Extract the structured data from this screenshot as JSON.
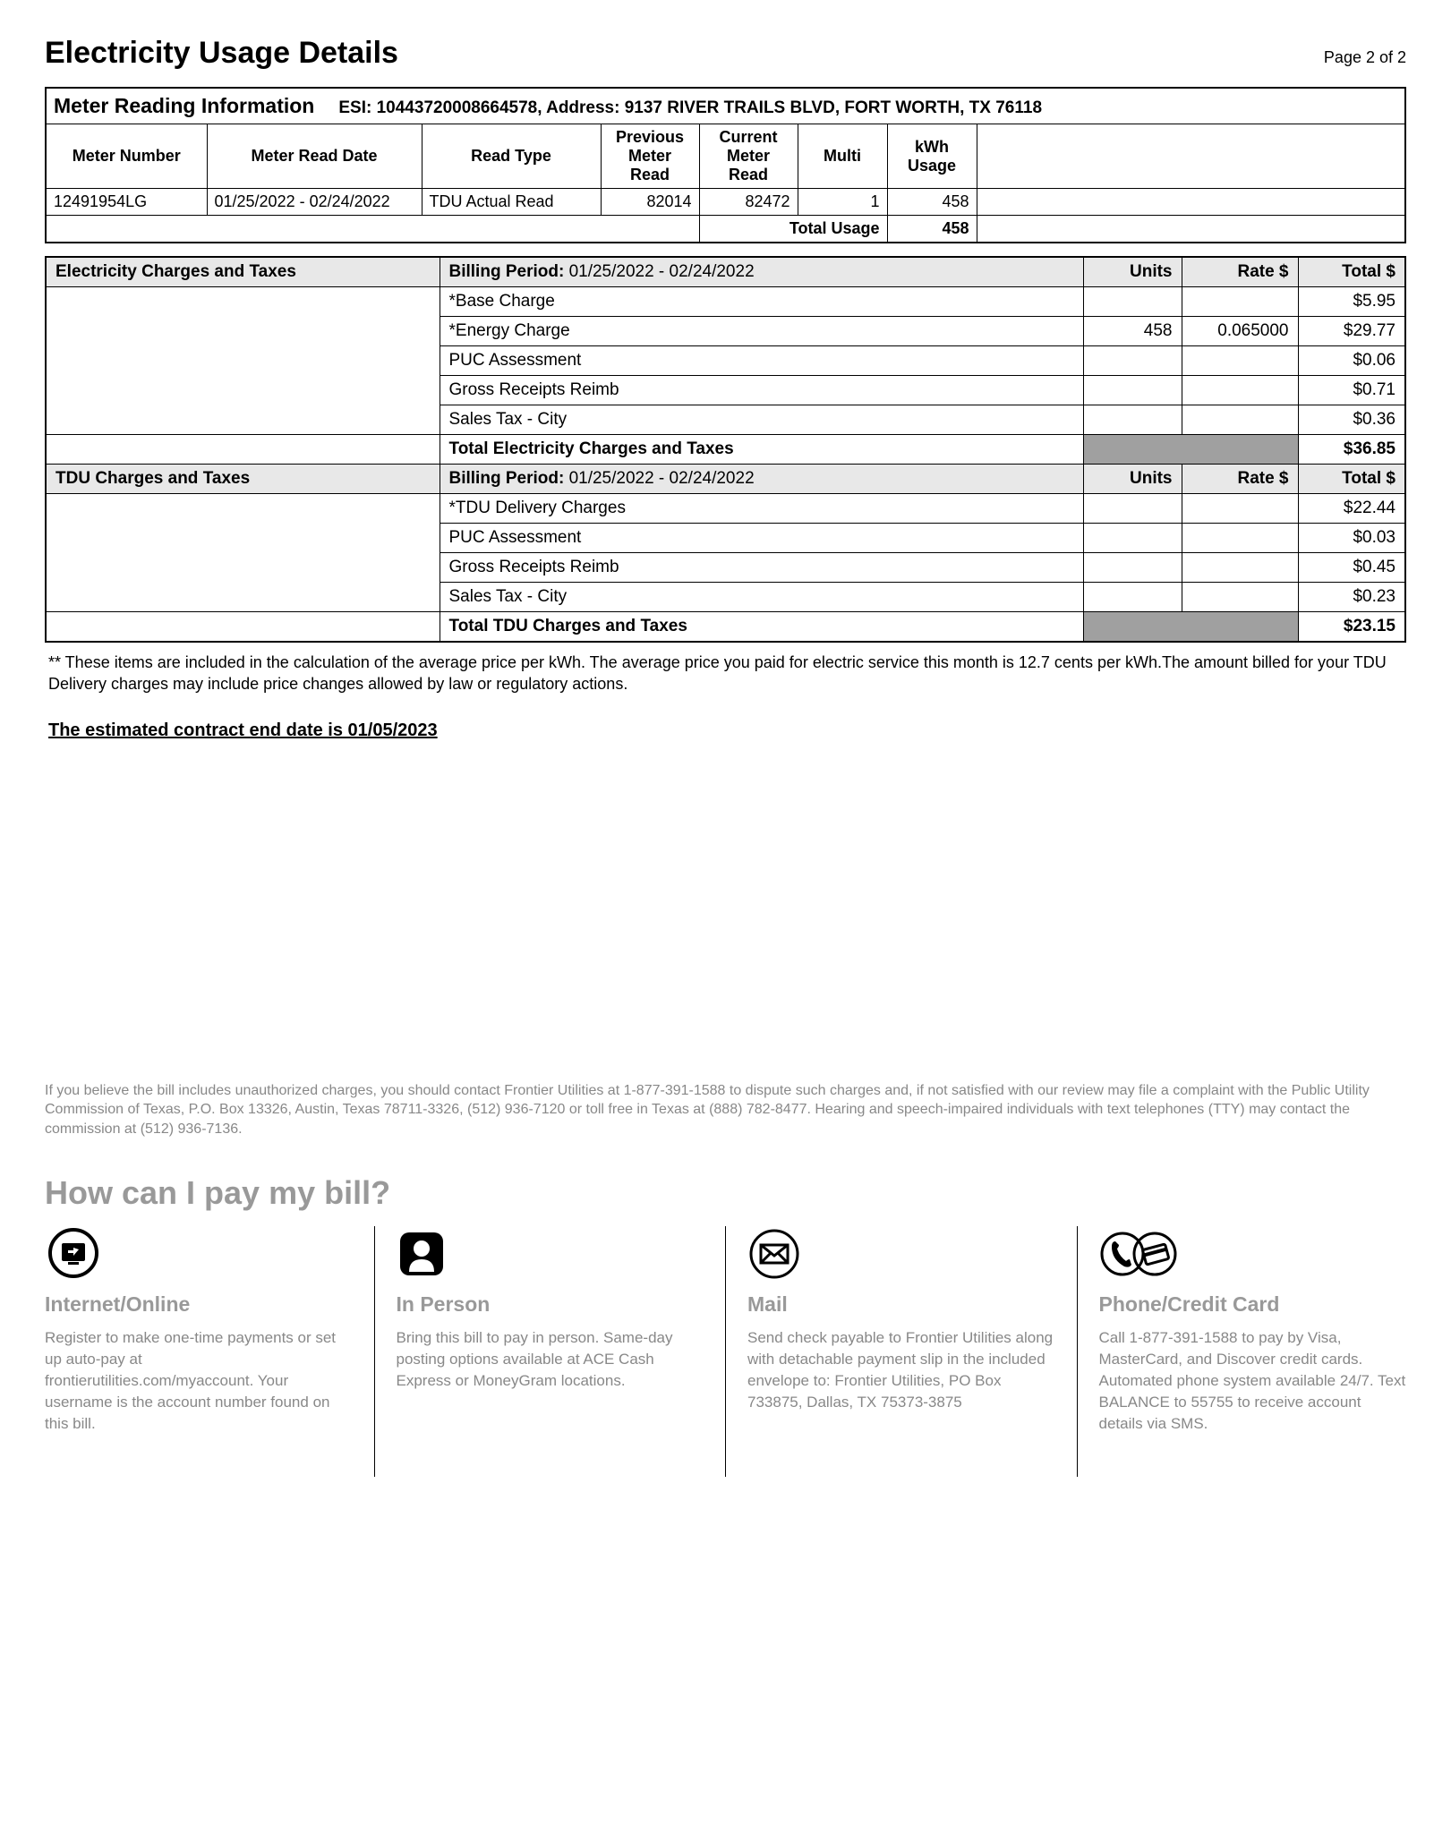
{
  "header": {
    "title": "Electricity Usage Details",
    "page": "Page 2 of 2"
  },
  "meter": {
    "section_title": "Meter Reading Information",
    "esi_label": "ESI: 10443720008664578, Address: 9137 RIVER TRAILS BLVD, FORT WORTH, TX 76118",
    "columns": {
      "meter_number": "Meter Number",
      "meter_read_date": "Meter Read Date",
      "read_type": "Read Type",
      "prev_line1": "Previous",
      "prev_line2": "Meter Read",
      "curr_line1": "Current",
      "curr_line2": "Meter Read",
      "multi": "Multi",
      "kwh_line1": "kWh",
      "kwh_line2": "Usage"
    },
    "row": {
      "meter_number": "12491954LG",
      "meter_read_date": "01/25/2022 - 02/24/2022",
      "read_type": "TDU Actual Read",
      "previous": "82014",
      "current": "82472",
      "multi": "1",
      "kwh": "458"
    },
    "total_label": "Total Usage",
    "total_value": "458"
  },
  "elec_charges": {
    "section_title": "Electricity Charges and Taxes",
    "billing_label": "Billing Period:",
    "billing_value": "01/25/2022 - 02/24/2022",
    "col_units": "Units",
    "col_rate": "Rate $",
    "col_total": "Total $",
    "rows": [
      {
        "label": "*Base Charge",
        "units": "",
        "rate": "",
        "total": "$5.95"
      },
      {
        "label": "*Energy Charge",
        "units": "458",
        "rate": "0.065000",
        "total": "$29.77"
      },
      {
        "label": "PUC Assessment",
        "units": "",
        "rate": "",
        "total": "$0.06"
      },
      {
        "label": "Gross Receipts Reimb",
        "units": "",
        "rate": "",
        "total": "$0.71"
      },
      {
        "label": "Sales Tax - City",
        "units": "",
        "rate": "",
        "total": "$0.36"
      }
    ],
    "total_label": "Total Electricity Charges and Taxes",
    "total_value": "$36.85"
  },
  "tdu_charges": {
    "section_title": "TDU Charges and Taxes",
    "billing_label": "Billing Period:",
    "billing_value": "01/25/2022 - 02/24/2022",
    "col_units": "Units",
    "col_rate": "Rate $",
    "col_total": "Total $",
    "rows": [
      {
        "label": "*TDU Delivery Charges",
        "units": "",
        "rate": "",
        "total": "$22.44"
      },
      {
        "label": "PUC Assessment",
        "units": "",
        "rate": "",
        "total": "$0.03"
      },
      {
        "label": "Gross Receipts Reimb",
        "units": "",
        "rate": "",
        "total": "$0.45"
      },
      {
        "label": "Sales Tax - City",
        "units": "",
        "rate": "",
        "total": "$0.23"
      }
    ],
    "total_label": "Total TDU Charges and Taxes",
    "total_value": "$23.15"
  },
  "footnote": "** These items are included in the calculation of the average price per kWh. The average price you paid for electric service this month is 12.7 cents per kWh.The amount billed for your TDU Delivery charges may include price changes allowed by law or regulatory actions.",
  "contract_end": "The estimated contract end date is 01/05/2023",
  "dispute": "If you believe the bill includes unauthorized charges, you should contact Frontier Utilities at 1-877-391-1588 to dispute such charges and, if not satisfied with our review may file a complaint with the Public Utility Commission of Texas, P.O. Box 13326, Austin, Texas 78711-3326, (512) 936-7120 or toll free in Texas at (888) 782-8477.  Hearing and speech-impaired individuals with text telephones (TTY) may contact the commission at (512) 936-7136.",
  "pay": {
    "title": "How can I pay my bill?",
    "methods": [
      {
        "title": "Internet/Online",
        "desc": "Register to make one-time payments or set up auto-pay at frontierutilities.com/myaccount. Your username is the account number found on this bill."
      },
      {
        "title": "In Person",
        "desc": "Bring this bill to pay in person. Same-day posting options available at ACE Cash Express or MoneyGram locations."
      },
      {
        "title": "Mail",
        "desc": "Send check payable to Frontier Utilities along with detachable payment slip in the included envelope to: Frontier Utilities, PO Box 733875, Dallas, TX 75373-3875"
      },
      {
        "title": "Phone/Credit Card",
        "desc": "Call 1-877-391-1588 to pay by Visa, MasterCard, and Discover credit cards. Automated phone system available 24/7. Text BALANCE to 55755 to receive account details via SMS."
      }
    ]
  }
}
